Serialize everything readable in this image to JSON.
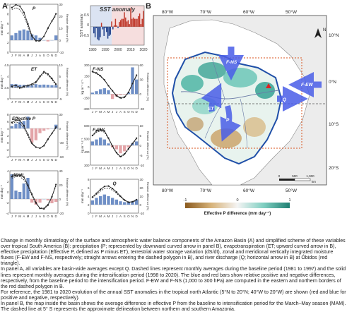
{
  "panels": {
    "a": {
      "letter": "A",
      "months": [
        "J",
        "F",
        "M",
        "A",
        "M",
        "J",
        "J",
        "A",
        "S",
        "O",
        "N",
        "D"
      ],
      "charts": [
        {
          "id": "P",
          "title": "P",
          "ylabel": "mm day⁻¹",
          "y2label": "Relative difference (%)",
          "ylim": [
            0,
            10
          ],
          "y2lim": [
            -10,
            30
          ],
          "yticks": [
            "10",
            "8",
            "6",
            "4",
            "2",
            "0"
          ],
          "y2ticks": [
            "30",
            "20",
            "10",
            "0",
            "-10"
          ],
          "baseline": [
            8.9,
            9.3,
            8.9,
            7.6,
            5.4,
            3.2,
            2.3,
            2.3,
            3.3,
            5.1,
            6.5,
            7.6
          ],
          "intensification": [
            9.3,
            9.9,
            9.6,
            8.3,
            5.9,
            3.4,
            2.4,
            2.4,
            3.3,
            5.0,
            6.5,
            8.0
          ],
          "reldiff": [
            4,
            6,
            8,
            9,
            8,
            5,
            4,
            2,
            0,
            -1,
            0,
            4
          ]
        },
        {
          "id": "ET",
          "title": "ET",
          "ylabel": "mm day⁻¹",
          "y2label": "Relative difference (%)",
          "ylim": [
            3,
            4.5
          ],
          "y2lim": [
            -5,
            10
          ],
          "yticks": [
            "4.5",
            "4",
            "3.5",
            "3"
          ],
          "y2ticks": [
            "10",
            "5",
            "0",
            "-5"
          ],
          "baseline": [
            3.5,
            3.52,
            3.45,
            3.5,
            3.55,
            3.6,
            3.7,
            3.95,
            4.15,
            4.05,
            3.85,
            3.6
          ],
          "intensification": [
            3.55,
            3.6,
            3.5,
            3.55,
            3.6,
            3.65,
            3.75,
            4.0,
            4.2,
            4.1,
            3.9,
            3.65
          ],
          "reldiff": [
            1.5,
            1.5,
            1.2,
            1.2,
            1.0,
            1.0,
            1.5,
            1.2,
            1.3,
            1.2,
            1.0,
            1.0
          ]
        },
        {
          "id": "EffP",
          "title": "Effective P",
          "ylabel": "mm day⁻¹",
          "y2label": "Relative difference (%)",
          "ylim": [
            -4,
            8
          ],
          "y2lim": [
            -60,
            30
          ],
          "yticks": [
            "8",
            "6",
            "4",
            "2",
            "0",
            "-2",
            "-4"
          ],
          "y2ticks": [
            "30",
            "0",
            "-30",
            "-60"
          ],
          "baseline": [
            5.4,
            5.9,
            5.4,
            4.1,
            1.8,
            -0.4,
            -1.4,
            -1.6,
            -0.8,
            1.1,
            2.6,
            4.0
          ],
          "intensification": [
            5.7,
            6.4,
            6.2,
            4.8,
            2.3,
            -0.2,
            -1.3,
            -1.6,
            -0.9,
            0.9,
            2.6,
            4.4
          ],
          "reldiff": [
            5,
            10,
            14,
            16,
            25,
            -30,
            -25,
            -10,
            -5,
            -2,
            0,
            8
          ]
        },
        {
          "id": "dSdt",
          "title": "dS/dt",
          "ylabel": "mm day⁻¹",
          "y2label": "Relative difference (%)",
          "ylim": [
            -4,
            4
          ],
          "y2lim": [
            -20,
            40
          ],
          "yticks": [
            "4",
            "2",
            "0",
            "-2",
            "-4"
          ],
          "y2ticks": [
            "40",
            "20",
            "0",
            "-20"
          ],
          "baseline": [
            2.6,
            2.9,
            2.9,
            2.3,
            1.0,
            -0.7,
            -2.2,
            -3.0,
            -3.0,
            -2.3,
            -0.8,
            1.1
          ],
          "intensification": [
            2.9,
            3.2,
            3.2,
            2.8,
            1.3,
            -0.4,
            -2.0,
            -3.1,
            -3.2,
            -2.5,
            -0.9,
            1.4
          ],
          "reldiff": [
            35,
            12,
            10,
            22,
            30,
            -5,
            -8,
            -5,
            0,
            -2,
            -6,
            -4
          ]
        },
        {
          "id": "FNS",
          "title": "F-NS",
          "ylabel": "kg m⁻¹ s⁻¹",
          "y2label": "Relative difference (%)",
          "ylim": [
            -300,
            300
          ],
          "y2lim": [
            -30,
            60
          ],
          "yticks": [
            "300",
            "150",
            "0",
            "-150",
            "-300"
          ],
          "y2ticks": [
            "60",
            "30",
            "0",
            "-30"
          ],
          "baseline": [
            200,
            180,
            140,
            90,
            10,
            -60,
            -130,
            -160,
            -150,
            -80,
            40,
            150
          ],
          "intensification": [
            210,
            190,
            150,
            95,
            15,
            -55,
            -120,
            -150,
            -140,
            -75,
            45,
            160
          ],
          "reldiff": [
            3,
            6,
            10,
            12,
            8,
            -10,
            -5,
            -2,
            -1,
            3,
            55,
            30
          ]
        },
        {
          "id": "FEW",
          "title": "F-EW",
          "ylabel": "kg m⁻¹ s⁻¹",
          "y2label": "Relative difference (%)",
          "ylim": [
            300,
            600
          ],
          "y2lim": [
            -10,
            10
          ],
          "yticks": [
            "600",
            "500",
            "400",
            "300"
          ],
          "y2ticks": [
            "10",
            "5",
            "0",
            "-5",
            "-10"
          ],
          "baseline": [
            520,
            550,
            560,
            550,
            500,
            440,
            390,
            360,
            380,
            420,
            460,
            500
          ],
          "intensification": [
            525,
            560,
            570,
            560,
            505,
            445,
            395,
            365,
            385,
            425,
            465,
            505
          ],
          "reldiff": [
            2,
            3,
            4,
            3,
            1,
            -1,
            -2,
            -4,
            -3,
            -1,
            1,
            2
          ]
        },
        {
          "id": "Q",
          "title": "Q",
          "ylabel": "mm day⁻¹",
          "y2label": "Relative difference (%)",
          "ylim": [
            0,
            8
          ],
          "y2lim": [
            -10,
            30
          ],
          "yticks": [
            "8",
            "6",
            "4",
            "2",
            "0"
          ],
          "y2ticks": [
            "30",
            "20",
            "10",
            "0",
            "-10"
          ],
          "baseline": [
            3.6,
            4.4,
            5.2,
            5.8,
            5.9,
            5.4,
            4.7,
            3.8,
            3.0,
            2.5,
            2.6,
            3.0
          ],
          "intensification": [
            3.8,
            4.7,
            5.6,
            6.3,
            6.4,
            5.8,
            5.0,
            4.0,
            3.1,
            2.6,
            2.7,
            3.2
          ],
          "reldiff": [
            5,
            8,
            10,
            12,
            10,
            8,
            6,
            4,
            3,
            3,
            4,
            6
          ]
        }
      ]
    },
    "sst": {
      "title": "SST anomaly",
      "ylabel": "SST anomaly",
      "xticks": [
        "1980",
        "1990",
        "2000",
        "2010",
        "2020"
      ],
      "yticks": [
        "0.5",
        "0",
        "-0.5"
      ],
      "chart_data": {
        "type": "bar",
        "x": [
          1981,
          1982,
          1983,
          1984,
          1985,
          1986,
          1987,
          1988,
          1989,
          1990,
          1991,
          1992,
          1993,
          1994,
          1995,
          1996,
          1997,
          1998,
          1999,
          2000,
          2001,
          2002,
          2003,
          2004,
          2005,
          2006,
          2007,
          2008,
          2009,
          2010,
          2011,
          2012,
          2013,
          2014,
          2015,
          2016,
          2017,
          2018,
          2019,
          2020
        ],
        "values": [
          -0.25,
          -0.4,
          -0.05,
          -0.48,
          -0.52,
          -0.4,
          0.15,
          -0.1,
          -0.35,
          -0.05,
          -0.2,
          -0.45,
          -0.35,
          -0.3,
          0.2,
          -0.1,
          0.05,
          0.3,
          0.05,
          -0.05,
          0.18,
          0.25,
          0.3,
          0.3,
          0.55,
          0.35,
          0.2,
          0.25,
          0.1,
          0.7,
          0.3,
          0.35,
          0.3,
          0.3,
          0.3,
          0.4,
          0.5,
          0.1,
          0.3,
          0.6
        ],
        "ylim": [
          -0.7,
          0.8
        ],
        "positive_color": "#c0392b",
        "negative_color": "#1f3f8a"
      }
    },
    "b": {
      "letter": "B",
      "lon_top": [
        "80°W",
        "70°W",
        "60°W",
        "50°W"
      ],
      "lon_bottom": [
        "80°W",
        "70°W",
        "60°W",
        "50°W"
      ],
      "lat": [
        "10°N",
        "0°N",
        "10°S",
        "20°S"
      ],
      "north": "N",
      "arrows": [
        "F-NS",
        "F-EW",
        "ET",
        "P",
        "Q"
      ],
      "scale": [
        "0",
        "500",
        "1,000"
      ],
      "scale_unit": "km",
      "colorbar_ticks": [
        "-1",
        "0",
        "1"
      ],
      "colorbar_label": "Effective P difference (mm day⁻¹)",
      "colors": {
        "positive": "#2a9d8f",
        "negative": "#b8894a",
        "arrow": "#4a5ee8",
        "basin": "#1f4fa8",
        "box": "#d9531e",
        "station": "#d22"
      }
    }
  },
  "caption": {
    "p1": "Change in monthly climatology of the surface and atmospheric water balance components of the Amazon Basin (A) and simplified scheme of these variables over tropical South America (B): precipitation (P; represented by downward curved arrow in panel B), evapotranspiration (ET; upward curved arrow in B), effective precipitation (Effective P, defined as P minus ET), terrestrial water storage variation (dS/dt), zonal and meridional vertically integrated moisture fluxes (F-EW and F-NS, respectively; straight arrows entering the dashed polygon in B), and river discharge (Q; horizontal arrow in B) at Óbidos (red triangle).",
    "p2": "In panel A, all variables are basin-wide averages except Q. Dashed lines represent monthly averages during the baseline period (1981 to 1997) and the solid lines represent monthly averages during the intensification period (1998 to 2020). The blue and red bars show relative positive and negative differences, respectively, from the baseline period to the intensification period. F-EW and F-NS (1,000 to 300 hPa) are computed in the eastern and northern borders of the red dashed polygon in B.",
    "p3": "For reference, the 1981 to 2020 evolution of the annual SST anomalies in the tropical north Atlantic (5°N to 20°N; 40°W to 20°W) are shown (red and blue for positive and negative, respectively).",
    "p4": "In panel B, the map inside the basin shows the average difference in effective P from the baseline to intensification period for the March–May season (MAM). The dashed line at 5° S represents the approximate delineation between northern and southern Amazonia."
  }
}
